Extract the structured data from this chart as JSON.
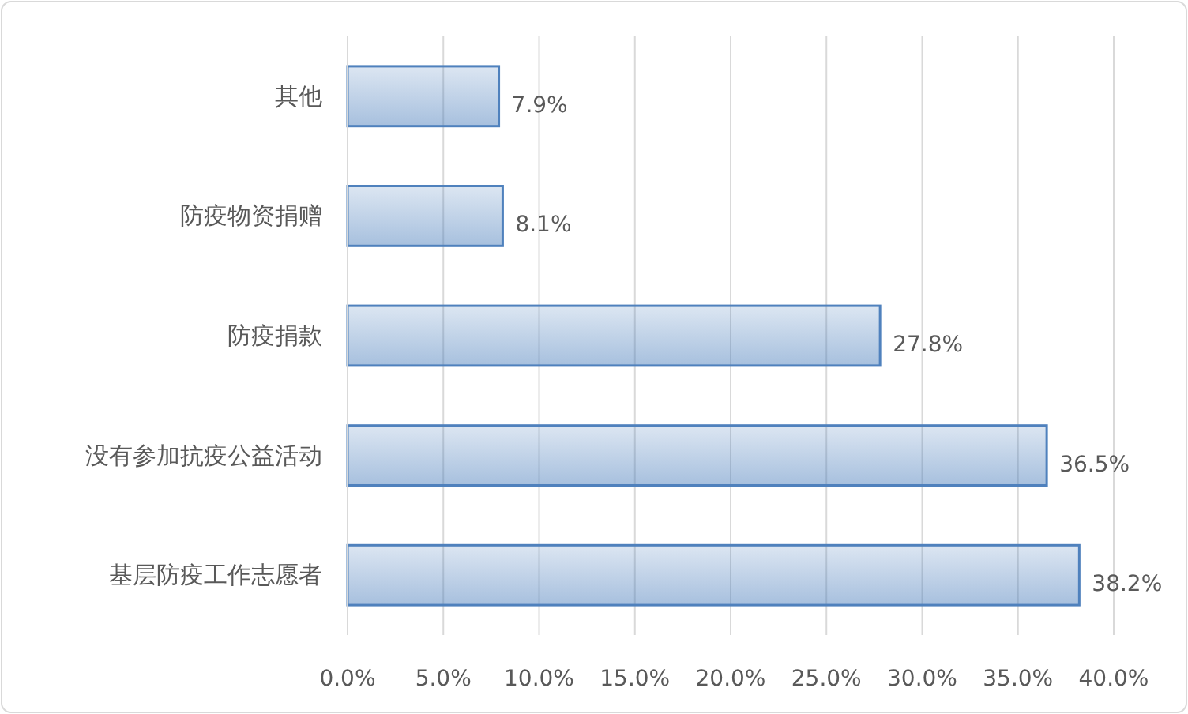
{
  "chart_data": {
    "type": "bar",
    "orientation": "horizontal",
    "categories": [
      "其他",
      "防疫物资捐赠",
      "防疫捐款",
      "没有参加抗疫公益活动",
      "基层防疫工作志愿者"
    ],
    "values": [
      7.9,
      8.1,
      27.8,
      36.5,
      38.2
    ],
    "value_labels": [
      "7.9%",
      "8.1%",
      "27.8%",
      "36.5%",
      "38.2%"
    ],
    "color": "#4f81bd",
    "xlim": [
      0,
      40
    ],
    "xticks": [
      {
        "value": 0,
        "label": "0.0%"
      },
      {
        "value": 5,
        "label": "5.0%"
      },
      {
        "value": 10,
        "label": "10.0%"
      },
      {
        "value": 15,
        "label": "15.0%"
      },
      {
        "value": 20,
        "label": "20.0%"
      },
      {
        "value": 25,
        "label": "25.0%"
      },
      {
        "value": 30,
        "label": "30.0%"
      },
      {
        "value": 35,
        "label": "35.0%"
      },
      {
        "value": 40,
        "label": "40.0%"
      }
    ],
    "grid": "x"
  }
}
